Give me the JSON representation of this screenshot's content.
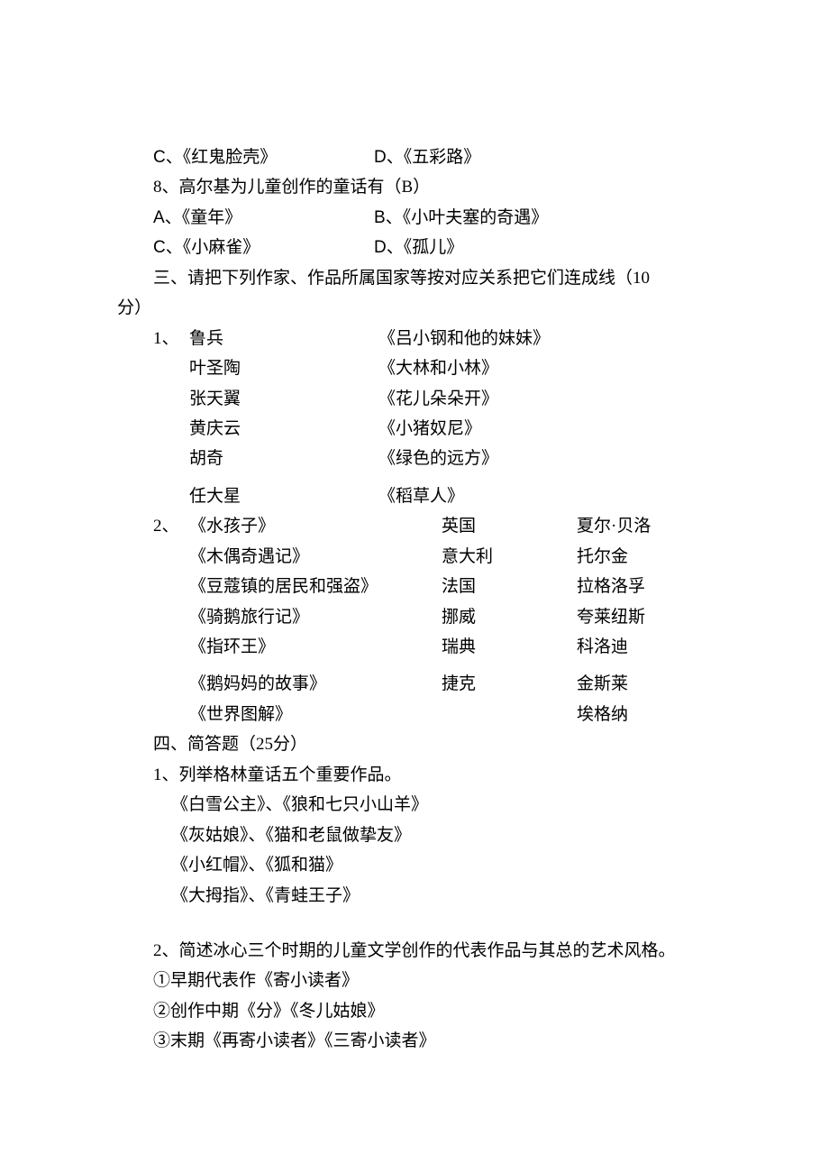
{
  "options7": {
    "C": "《红鬼脸壳》",
    "D": "《五彩路》"
  },
  "q8": {
    "prompt": "8、高尔基为儿童创作的童话有（B）",
    "A": "《童年》",
    "B": "《小叶夫塞的奇遇》",
    "C": "《小麻雀》",
    "D": "《孤儿》"
  },
  "section3": {
    "title": "三、请把下列作家、作品所属国家等按对应关系把它们连成线（10",
    "title2": "分）"
  },
  "match1": {
    "num": "1、",
    "rows": [
      {
        "author": "鲁兵",
        "work": "《吕小钢和他的妹妹》"
      },
      {
        "author": "叶圣陶",
        "work": "《大林和小林》"
      },
      {
        "author": "张天翼",
        "work": "《花儿朵朵开》"
      },
      {
        "author": "黄庆云",
        "work": "《小猪奴尼》"
      },
      {
        "author": "胡奇",
        "work": "《绿色的远方》"
      },
      {
        "author": "任大星",
        "work": "《稻草人》"
      }
    ]
  },
  "match2": {
    "num": "2、",
    "rows": [
      {
        "work": "《水孩子》",
        "country": "英国",
        "author": "夏尔·贝洛"
      },
      {
        "work": "《木偶奇遇记》",
        "country": "意大利",
        "author": "托尔金"
      },
      {
        "work": "《豆蔻镇的居民和强盗》",
        "country": "法国",
        "author": "拉格洛孚"
      },
      {
        "work": "《骑鹅旅行记》",
        "country": "挪威",
        "author": "夸莱纽斯"
      },
      {
        "work": "《指环王》",
        "country": "瑞典",
        "author": "科洛迪"
      },
      {
        "work": "《鹅妈妈的故事》",
        "country": "捷克",
        "author": "金斯莱"
      },
      {
        "work": "《世界图解》",
        "country": "",
        "author": "埃格纳"
      }
    ]
  },
  "section4": {
    "title": "四、简答题（25分）"
  },
  "q4_1": {
    "prompt": "1、列举格林童话五个重要作品。",
    "lines": [
      "《白雪公主》、《狼和七只小山羊》",
      "《灰姑娘》、《猫和老鼠做挚友》",
      "《小红帽》、《狐和猫》",
      "《大拇指》、《青蛙王子》"
    ]
  },
  "q4_2": {
    "prompt": "2、简述冰心三个时期的儿童文学创作的代表作品与其总的艺术风格。",
    "lines": [
      "①早期代表作《寄小读者》",
      "②创作中期《分》《冬儿姑娘》",
      "③末期《再寄小读者》《三寄小读者》"
    ]
  }
}
